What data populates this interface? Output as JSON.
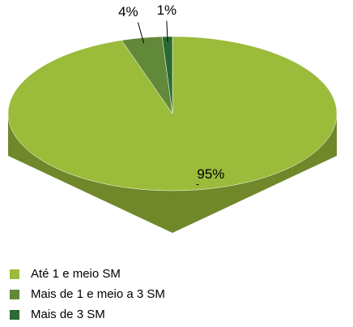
{
  "chart_data": {
    "type": "pie",
    "categories": [
      "Até 1 e meio SM",
      "Mais de 1 e meio a 3 SM",
      "Mais de 3 SM"
    ],
    "values": [
      95,
      4,
      1
    ],
    "value_labels": [
      "95%",
      "4%",
      "1%"
    ],
    "colors": [
      "#9bbb3b",
      "#62893a",
      "#2b6a30"
    ],
    "legend": "bottom"
  }
}
